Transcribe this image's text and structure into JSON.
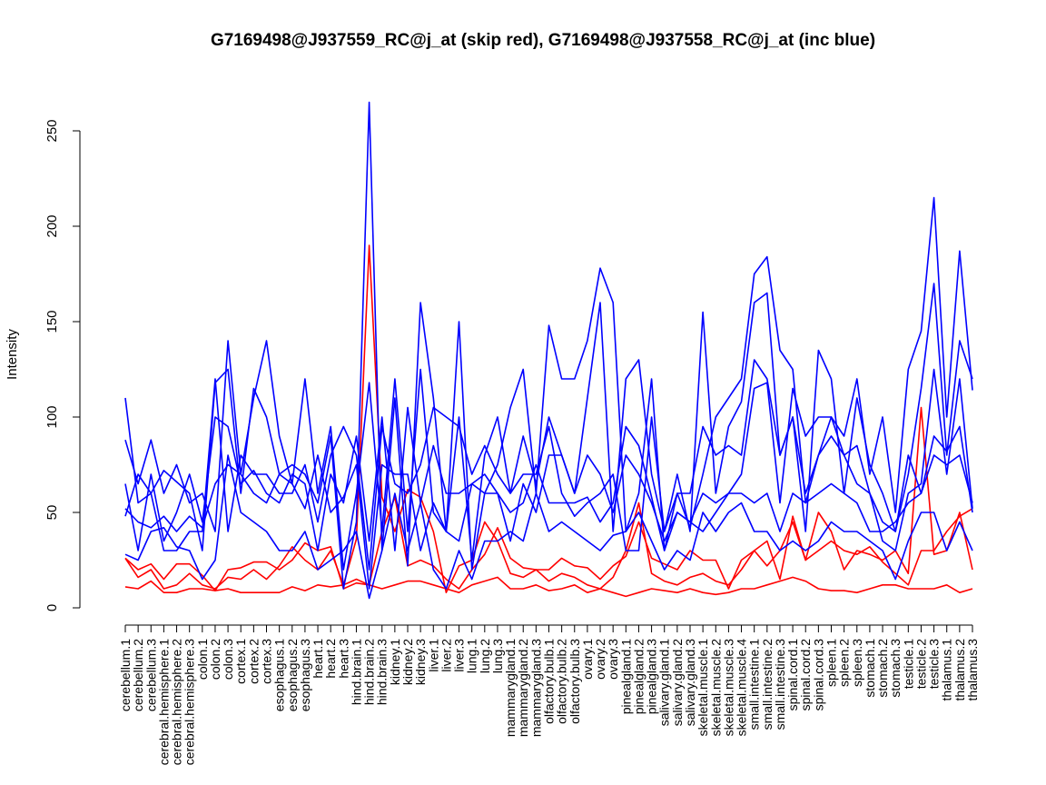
{
  "chart_data": {
    "type": "line",
    "title": "G7169498@J937559_RC@j_at (skip red), G7169498@J937558_RC@j_at (inc blue)",
    "xlabel": "",
    "ylabel": "Intensity",
    "ylim": [
      0,
      260
    ],
    "yticks": [
      0,
      50,
      100,
      150,
      200,
      250
    ],
    "grid": false,
    "legend": "none",
    "colors": {
      "skip": "#ff0000",
      "inc": "#0000ff"
    },
    "categories": [
      "cerebellum.1",
      "cerebellum.2",
      "cerebellum.3",
      "cerebral.hemisphere.1",
      "cerebral.hemisphere.2",
      "cerebral.hemisphere.3",
      "colon.1",
      "colon.2",
      "colon.3",
      "cortex.1",
      "cortex.2",
      "cortex.3",
      "esophagus.1",
      "esophagus.2",
      "esophagus.3",
      "heart.1",
      "heart.2",
      "heart.3",
      "hind.brain.1",
      "hind.brain.2",
      "hind.brain.3",
      "kidney.1",
      "kidney.2",
      "kidney.3",
      "liver.1",
      "liver.2",
      "liver.3",
      "lung.1",
      "lung.2",
      "lung.3",
      "mammarygland.1",
      "mammarygland.2",
      "mammarygland.3",
      "olfactory.bulb.1",
      "olfactory.bulb.2",
      "olfactory.bulb.3",
      "ovary.1",
      "ovary.2",
      "ovary.3",
      "pinealgland.1",
      "pinealgland.2",
      "pinealgland.3",
      "salivary.gland.1",
      "salivary.gland.2",
      "salivary.gland.3",
      "skeletal.muscle.1",
      "skeletal.muscle.2",
      "skeletal.muscle.3",
      "skeletal.muscle.4",
      "small.intestine.1",
      "small.intestine.2",
      "small.intestine.3",
      "spinal.cord.1",
      "spinal.cord.2",
      "spinal.cord.3",
      "spleen.1",
      "spleen.2",
      "spleen.3",
      "stomach.1",
      "stomach.2",
      "stomach.3",
      "testicle.1",
      "testicle.2",
      "testicle.3",
      "thalamus.1",
      "thalamus.2",
      "thalamus.3"
    ],
    "series": [
      {
        "group": "skip",
        "values": [
          26,
          20,
          23,
          15,
          23,
          23,
          17,
          9,
          20,
          21,
          24,
          24,
          20,
          25,
          34,
          30,
          32,
          10,
          13,
          12,
          40,
          58,
          22,
          25,
          22,
          15,
          10,
          20,
          28,
          42,
          26,
          21,
          20,
          20,
          26,
          22,
          21,
          15,
          22,
          27,
          45,
          26,
          23,
          20,
          30,
          25,
          25,
          10,
          25,
          30,
          35,
          15,
          48,
          25,
          50,
          40,
          20,
          30,
          28,
          25,
          30,
          18,
          105,
          28,
          30,
          50,
          20
        ]
      },
      {
        "group": "skip",
        "values": [
          26,
          16,
          20,
          10,
          12,
          18,
          12,
          10,
          16,
          15,
          20,
          15,
          22,
          32,
          25,
          20,
          30,
          12,
          36,
          190,
          58,
          40,
          62,
          58,
          40,
          8,
          22,
          25,
          45,
          35,
          18,
          16,
          20,
          14,
          18,
          16,
          12,
          10,
          16,
          30,
          55,
          18,
          14,
          12,
          16,
          18,
          14,
          12,
          20,
          30,
          22,
          30,
          45,
          25,
          30,
          35,
          30,
          28,
          32,
          24,
          18,
          12,
          30,
          30,
          40,
          48,
          52
        ]
      },
      {
        "group": "skip",
        "values": [
          11,
          10,
          14,
          8,
          8,
          10,
          10,
          9,
          10,
          8,
          8,
          8,
          8,
          11,
          9,
          12,
          11,
          12,
          15,
          12,
          10,
          12,
          14,
          14,
          12,
          10,
          8,
          12,
          14,
          16,
          10,
          10,
          12,
          9,
          10,
          12,
          8,
          10,
          8,
          6,
          8,
          10,
          9,
          8,
          10,
          8,
          7,
          8,
          10,
          10,
          12,
          14,
          16,
          14,
          10,
          9,
          9,
          8,
          10,
          12,
          12,
          10,
          10,
          10,
          12,
          8,
          10
        ]
      },
      {
        "group": "inc",
        "values": [
          110,
          55,
          60,
          72,
          66,
          60,
          30,
          118,
          125,
          60,
          115,
          100,
          70,
          75,
          70,
          55,
          90,
          10,
          45,
          265,
          30,
          110,
          22,
          160,
          110,
          40,
          150,
          20,
          60,
          75,
          105,
          125,
          60,
          148,
          120,
          120,
          140,
          178,
          160,
          40,
          60,
          120,
          30,
          60,
          42,
          70,
          100,
          110,
          120,
          175,
          184,
          135,
          125,
          55,
          80,
          100,
          90,
          120,
          70,
          100,
          50,
          125,
          145,
          215,
          100,
          187,
          114
        ]
      },
      {
        "group": "inc",
        "values": [
          88,
          65,
          88,
          60,
          75,
          55,
          60,
          40,
          140,
          70,
          110,
          140,
          90,
          65,
          120,
          60,
          95,
          20,
          60,
          118,
          40,
          120,
          40,
          125,
          50,
          40,
          100,
          25,
          80,
          100,
          60,
          90,
          65,
          100,
          80,
          60,
          110,
          160,
          40,
          120,
          130,
          70,
          40,
          70,
          40,
          155,
          60,
          95,
          108,
          160,
          165,
          80,
          100,
          40,
          135,
          120,
          60,
          110,
          75,
          60,
          40,
          70,
          115,
          170,
          80,
          140,
          120
        ]
      },
      {
        "group": "inc",
        "values": [
          48,
          70,
          60,
          30,
          30,
          40,
          40,
          120,
          40,
          80,
          70,
          70,
          60,
          60,
          75,
          45,
          80,
          95,
          80,
          20,
          95,
          65,
          60,
          75,
          105,
          100,
          95,
          70,
          85,
          70,
          60,
          70,
          70,
          95,
          60,
          48,
          55,
          60,
          70,
          30,
          30,
          100,
          40,
          60,
          60,
          95,
          80,
          85,
          80,
          130,
          120,
          80,
          100,
          60,
          80,
          90,
          80,
          85,
          60,
          45,
          40,
          80,
          60,
          90,
          82,
          95,
          50
        ]
      },
      {
        "group": "inc",
        "values": [
          65,
          30,
          70,
          35,
          50,
          70,
          45,
          100,
          95,
          65,
          72,
          60,
          55,
          70,
          65,
          30,
          70,
          55,
          90,
          35,
          100,
          30,
          105,
          55,
          85,
          60,
          60,
          65,
          60,
          60,
          35,
          65,
          50,
          80,
          80,
          60,
          80,
          70,
          50,
          80,
          70,
          55,
          35,
          50,
          45,
          60,
          55,
          60,
          70,
          115,
          118,
          55,
          115,
          90,
          100,
          100,
          80,
          65,
          60,
          35,
          30,
          60,
          65,
          125,
          70,
          120,
          52
        ]
      },
      {
        "group": "inc",
        "values": [
          52,
          45,
          42,
          48,
          40,
          48,
          42,
          65,
          75,
          70,
          60,
          55,
          70,
          65,
          52,
          80,
          50,
          58,
          75,
          10,
          75,
          70,
          70,
          30,
          55,
          40,
          35,
          65,
          70,
          60,
          50,
          55,
          75,
          55,
          55,
          55,
          58,
          45,
          55,
          95,
          85,
          58,
          30,
          50,
          45,
          40,
          50,
          60,
          60,
          55,
          60,
          40,
          60,
          55,
          60,
          65,
          60,
          55,
          40,
          40,
          45,
          55,
          60,
          80,
          75,
          80,
          55
        ]
      },
      {
        "group": "inc",
        "values": [
          28,
          25,
          40,
          42,
          32,
          30,
          15,
          25,
          80,
          50,
          45,
          40,
          30,
          30,
          40,
          20,
          25,
          30,
          40,
          5,
          30,
          60,
          30,
          55,
          20,
          10,
          30,
          15,
          35,
          35,
          40,
          35,
          60,
          40,
          45,
          40,
          35,
          30,
          38,
          40,
          50,
          35,
          20,
          30,
          25,
          50,
          40,
          50,
          55,
          40,
          40,
          30,
          35,
          30,
          35,
          45,
          40,
          40,
          35,
          30,
          15,
          35,
          50,
          50,
          30,
          45,
          30
        ]
      }
    ]
  }
}
